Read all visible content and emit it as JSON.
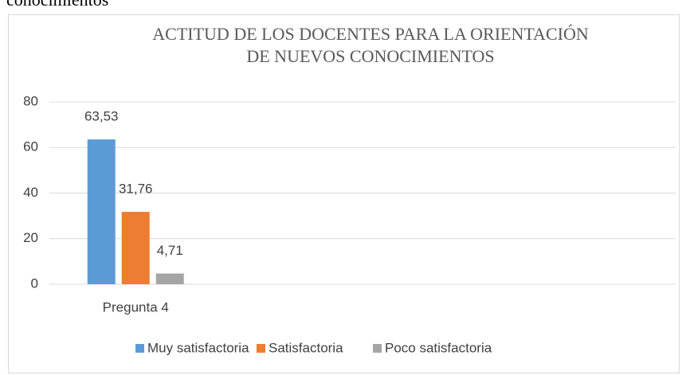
{
  "caption": "conocimientos",
  "chart_data": {
    "type": "bar",
    "title": [
      "ACTITUD DE LOS DOCENTES PARA LA ORIENTACIÓN",
      "DE NUEVOS CONOCIMIENTOS"
    ],
    "categories": [
      "Pregunta 4",
      null,
      null,
      null
    ],
    "series": [
      {
        "name": "Muy satisfactoria",
        "color": "#5b9bd5",
        "values": [
          63.53,
          null,
          null,
          null
        ],
        "value_labels": [
          "63,53",
          null,
          null,
          null
        ]
      },
      {
        "name": "Satisfactoria",
        "color": "#ed7d31",
        "values": [
          31.76,
          null,
          null,
          null
        ],
        "value_labels": [
          "31,76",
          null,
          null,
          null
        ]
      },
      {
        "name": "Poco satisfactoria",
        "color": "#a5a5a5",
        "values": [
          4.71,
          null,
          null,
          null
        ],
        "value_labels": [
          "4,71",
          null,
          null,
          null
        ]
      }
    ],
    "ylim": [
      0,
      80
    ],
    "yticks": [
      0,
      20,
      40,
      60,
      80
    ],
    "grid": true,
    "legend": "bottom"
  }
}
